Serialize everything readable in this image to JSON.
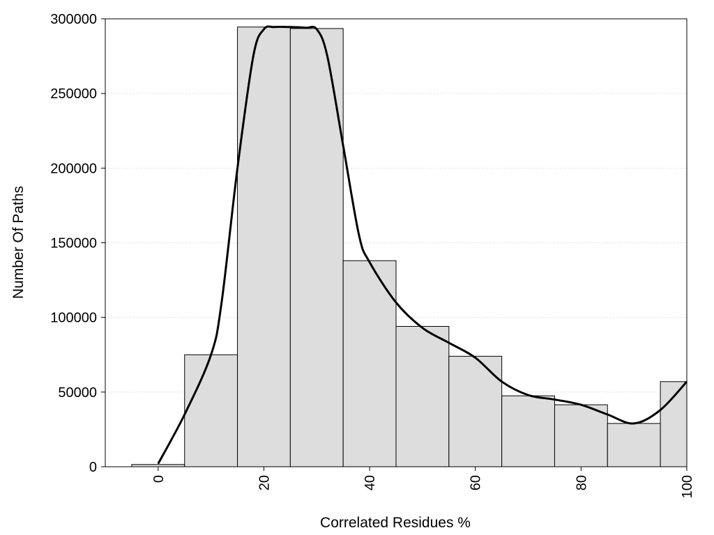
{
  "chart_data": {
    "type": "bar",
    "title": "",
    "xlabel": "Correlated Residues %",
    "ylabel": "Number Of Paths",
    "xlim": [
      -10,
      100
    ],
    "ylim": [
      0,
      300000
    ],
    "bin_width": 10,
    "x_ticks": [
      0,
      20,
      40,
      60,
      80,
      100
    ],
    "y_ticks": [
      0,
      50000,
      100000,
      150000,
      200000,
      250000,
      300000
    ],
    "y_gridlines": true,
    "bars": [
      {
        "x": 0,
        "value": 1500
      },
      {
        "x": 10,
        "value": 75000
      },
      {
        "x": 20,
        "value": 294500
      },
      {
        "x": 30,
        "value": 293500
      },
      {
        "x": 40,
        "value": 138000
      },
      {
        "x": 50,
        "value": 94000
      },
      {
        "x": 60,
        "value": 74000
      },
      {
        "x": 70,
        "value": 47500
      },
      {
        "x": 80,
        "value": 41500
      },
      {
        "x": 90,
        "value": 29000
      },
      {
        "x": 100,
        "value": 57000
      }
    ],
    "curve": {
      "x": [
        0,
        5,
        10,
        12,
        15,
        18,
        20,
        22,
        25,
        28,
        30,
        32,
        35,
        38,
        40,
        45,
        50,
        55,
        60,
        65,
        70,
        75,
        80,
        85,
        90,
        95,
        100
      ],
      "y": [
        2000,
        35000,
        75000,
        110000,
        200000,
        275000,
        293000,
        294500,
        294500,
        294000,
        293000,
        275000,
        215000,
        155000,
        137000,
        110000,
        93000,
        83000,
        73000,
        57000,
        48000,
        45000,
        41500,
        35000,
        29000,
        38000,
        57000
      ]
    },
    "colors": {
      "bar_fill": "#dddddd",
      "bar_stroke": "#000000",
      "curve": "#000000",
      "grid": "#c8c8c8"
    }
  }
}
